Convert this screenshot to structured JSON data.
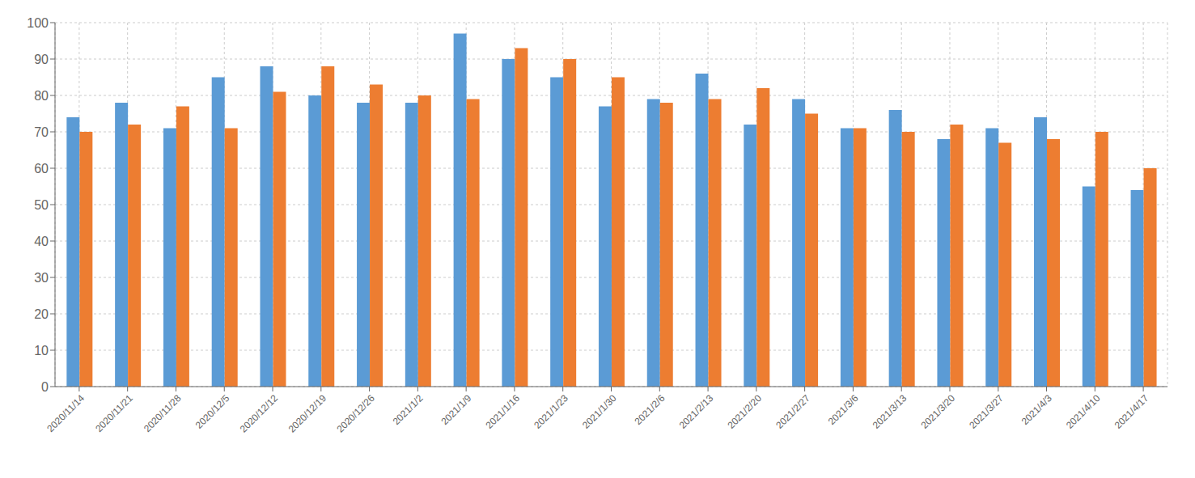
{
  "chart_data": {
    "type": "bar",
    "categories": [
      "2020/11/14",
      "2020/11/21",
      "2020/11/28",
      "2020/12/5",
      "2020/12/12",
      "2020/12/19",
      "2020/12/26",
      "2021/1/2",
      "2021/1/9",
      "2021/1/16",
      "2021/1/23",
      "2021/1/30",
      "2021/2/6",
      "2021/2/13",
      "2021/2/20",
      "2021/2/27",
      "2021/3/6",
      "2021/3/13",
      "2021/3/20",
      "2021/3/27",
      "2021/4/3",
      "2021/4/10",
      "2021/4/17"
    ],
    "series": [
      {
        "color": "#5B9BD5",
        "values": [
          74,
          78,
          71,
          85,
          88,
          80,
          78,
          78,
          97,
          90,
          85,
          77,
          79,
          86,
          72,
          79,
          71,
          76,
          68,
          71,
          74,
          55,
          54
        ]
      },
      {
        "color": "#ED7D31",
        "values": [
          70,
          72,
          77,
          71,
          81,
          88,
          83,
          80,
          79,
          93,
          90,
          85,
          78,
          79,
          82,
          75,
          71,
          70,
          72,
          67,
          68,
          70,
          60
        ]
      }
    ],
    "ylim": [
      0,
      100
    ],
    "yticks": [
      0,
      10,
      20,
      30,
      40,
      50,
      60,
      70,
      80,
      90,
      100
    ],
    "grid": true
  }
}
